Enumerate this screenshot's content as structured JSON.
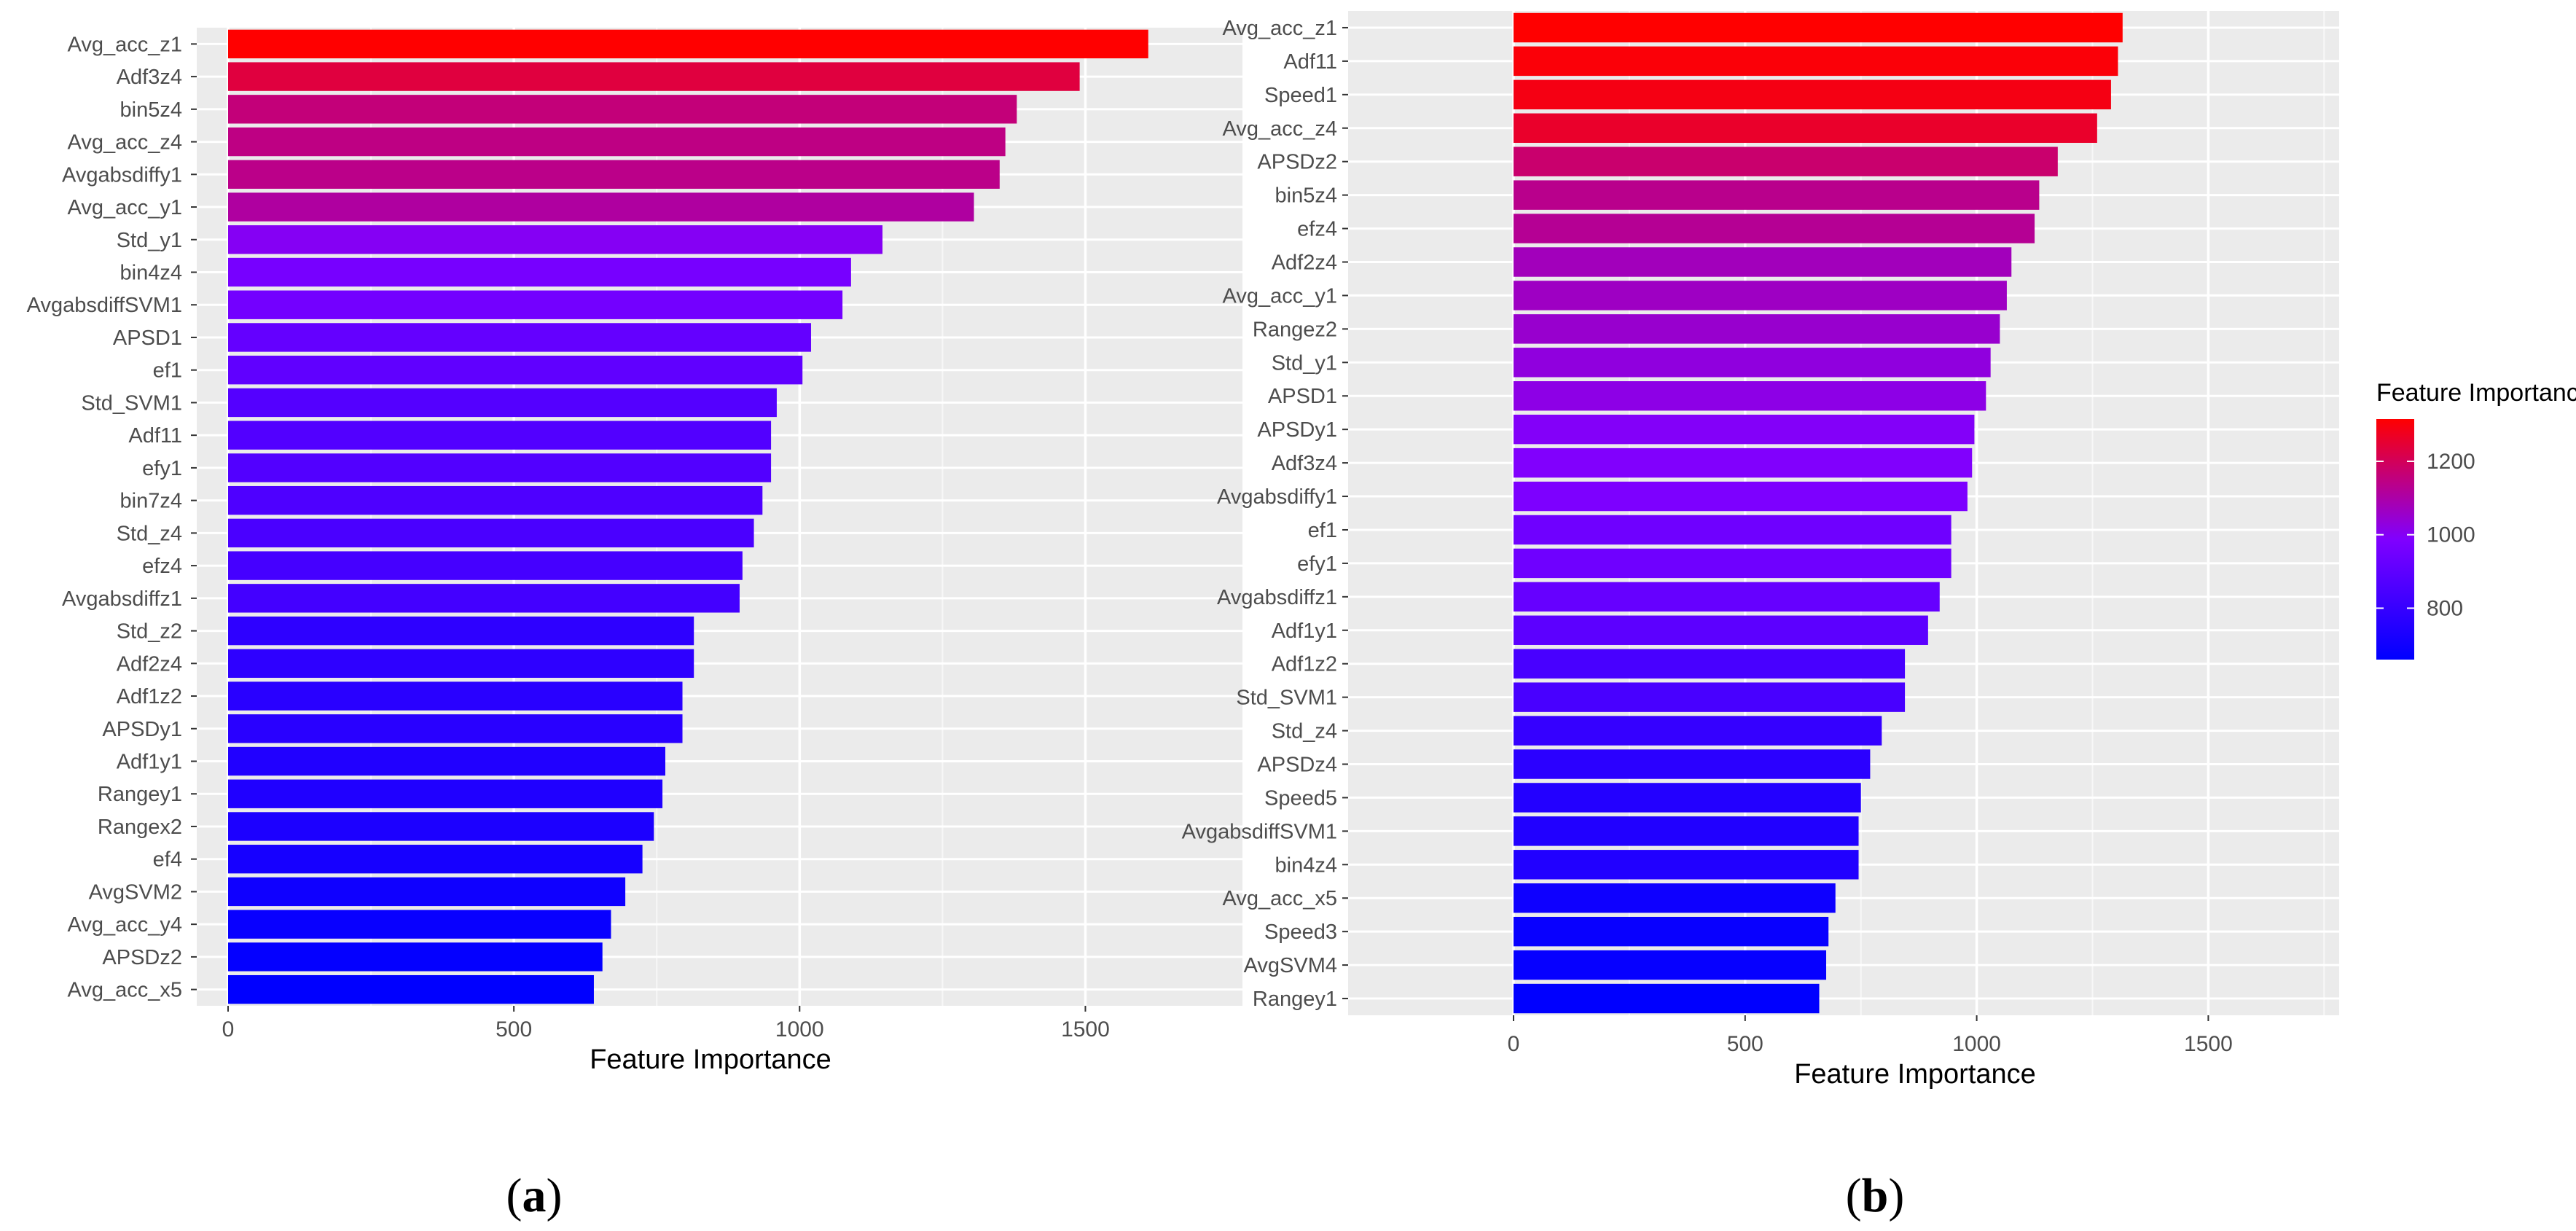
{
  "chart_data": [
    {
      "type": "bar",
      "orientation": "horizontal",
      "panel_label": "a",
      "xlabel": "Feature Importance",
      "ylabel": "",
      "xlim": [
        0,
        1750
      ],
      "xticks": [
        0,
        500,
        1000,
        1500
      ],
      "grid": true,
      "color_scale": {
        "low": "#0000ff",
        "high": "#ff0000",
        "min": 640,
        "max": 1610
      },
      "categories": [
        "Avg_acc_z1",
        "Adf3z4",
        "bin5z4",
        "Avg_acc_z4",
        "Avgabsdiffy1",
        "Avg_acc_y1",
        "Std_y1",
        "bin4z4",
        "AvgabsdiffSVM1",
        "APSD1",
        "ef1",
        "Std_SVM1",
        "Adf11",
        "efy1",
        "bin7z4",
        "Std_z4",
        "efz4",
        "Avgabsdiffz1",
        "Std_z2",
        "Adf2z4",
        "Adf1z2",
        "APSDy1",
        "Adf1y1",
        "Rangey1",
        "Rangex2",
        "ef4",
        "AvgSVM2",
        "Avg_acc_y4",
        "APSDz2",
        "Avg_acc_x5"
      ],
      "values": [
        1610,
        1490,
        1380,
        1360,
        1350,
        1305,
        1145,
        1090,
        1075,
        1020,
        1005,
        960,
        950,
        950,
        935,
        920,
        900,
        895,
        815,
        815,
        795,
        795,
        765,
        760,
        745,
        725,
        695,
        670,
        655,
        640
      ]
    },
    {
      "type": "bar",
      "orientation": "horizontal",
      "panel_label": "b",
      "xlabel": "Feature Importance",
      "ylabel": "",
      "xlim": [
        0,
        1770
      ],
      "xticks": [
        0,
        500,
        1000,
        1500
      ],
      "grid": true,
      "legend": {
        "title": "Feature Importance",
        "placement": "right",
        "ticks": [
          800,
          1000,
          1200
        ],
        "min": 660,
        "max": 1315,
        "low_color": "#0000ff",
        "mid_color": "#8000ff",
        "high_color": "#ff0000"
      },
      "categories": [
        "Avg_acc_z1",
        "Adf11",
        "Speed1",
        "Avg_acc_z4",
        "APSDz2",
        "bin5z4",
        "efz4",
        "Adf2z4",
        "Avg_acc_y1",
        "Rangez2",
        "Std_y1",
        "APSD1",
        "APSDy1",
        "Adf3z4",
        "Avgabsdiffy1",
        "ef1",
        "efy1",
        "Avgabsdiffz1",
        "Adf1y1",
        "Adf1z2",
        "Std_SVM1",
        "Std_z4",
        "APSDz4",
        "Speed5",
        "AvgabsdiffSVM1",
        "bin4z4",
        "Avg_acc_x5",
        "Speed3",
        "AvgSVM4",
        "Rangey1"
      ],
      "values": [
        1315,
        1305,
        1290,
        1260,
        1175,
        1135,
        1125,
        1075,
        1065,
        1050,
        1030,
        1020,
        995,
        990,
        980,
        945,
        945,
        920,
        895,
        845,
        845,
        795,
        770,
        750,
        745,
        745,
        695,
        680,
        675,
        660
      ]
    }
  ],
  "captions": [
    "a",
    "b"
  ]
}
